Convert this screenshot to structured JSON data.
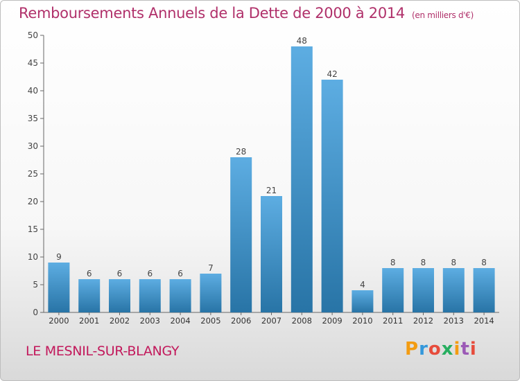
{
  "header": {
    "title": "Remboursements Annuels de la Dette de 2000 à 2014",
    "subtitle": "(en milliers d'€)"
  },
  "footer": {
    "commune": "LE MESNIL-SUR-BLANGY",
    "logo_text": "Proxiti",
    "logo_colors": [
      "#f39c12",
      "#3498db",
      "#e74c3c",
      "#27ae60",
      "#f39c12",
      "#9b59b6",
      "#e74c3c"
    ]
  },
  "chart_data": {
    "type": "bar",
    "categories": [
      "2000",
      "2001",
      "2002",
      "2003",
      "2004",
      "2005",
      "2006",
      "2007",
      "2008",
      "2009",
      "2010",
      "2011",
      "2012",
      "2013",
      "2014"
    ],
    "values": [
      9,
      6,
      6,
      6,
      6,
      7,
      28,
      21,
      48,
      42,
      4,
      8,
      8,
      8,
      8
    ],
    "data_labels": [
      "9",
      "6",
      "6",
      "6",
      "6",
      "7",
      "28",
      "21",
      "48",
      "42",
      "4",
      "8",
      "8",
      "8",
      "8"
    ],
    "ylim": [
      0,
      50
    ],
    "yticks": [
      0,
      5,
      10,
      15,
      20,
      25,
      30,
      35,
      40,
      45,
      50
    ],
    "ytick_labels": [
      "0",
      "5",
      "10",
      "15",
      "20",
      "25",
      "30",
      "35",
      "40",
      "45",
      "50"
    ],
    "bar_color_top": "#5dade2",
    "bar_color_bottom": "#2874a6",
    "grid": false,
    "legend": "none"
  }
}
